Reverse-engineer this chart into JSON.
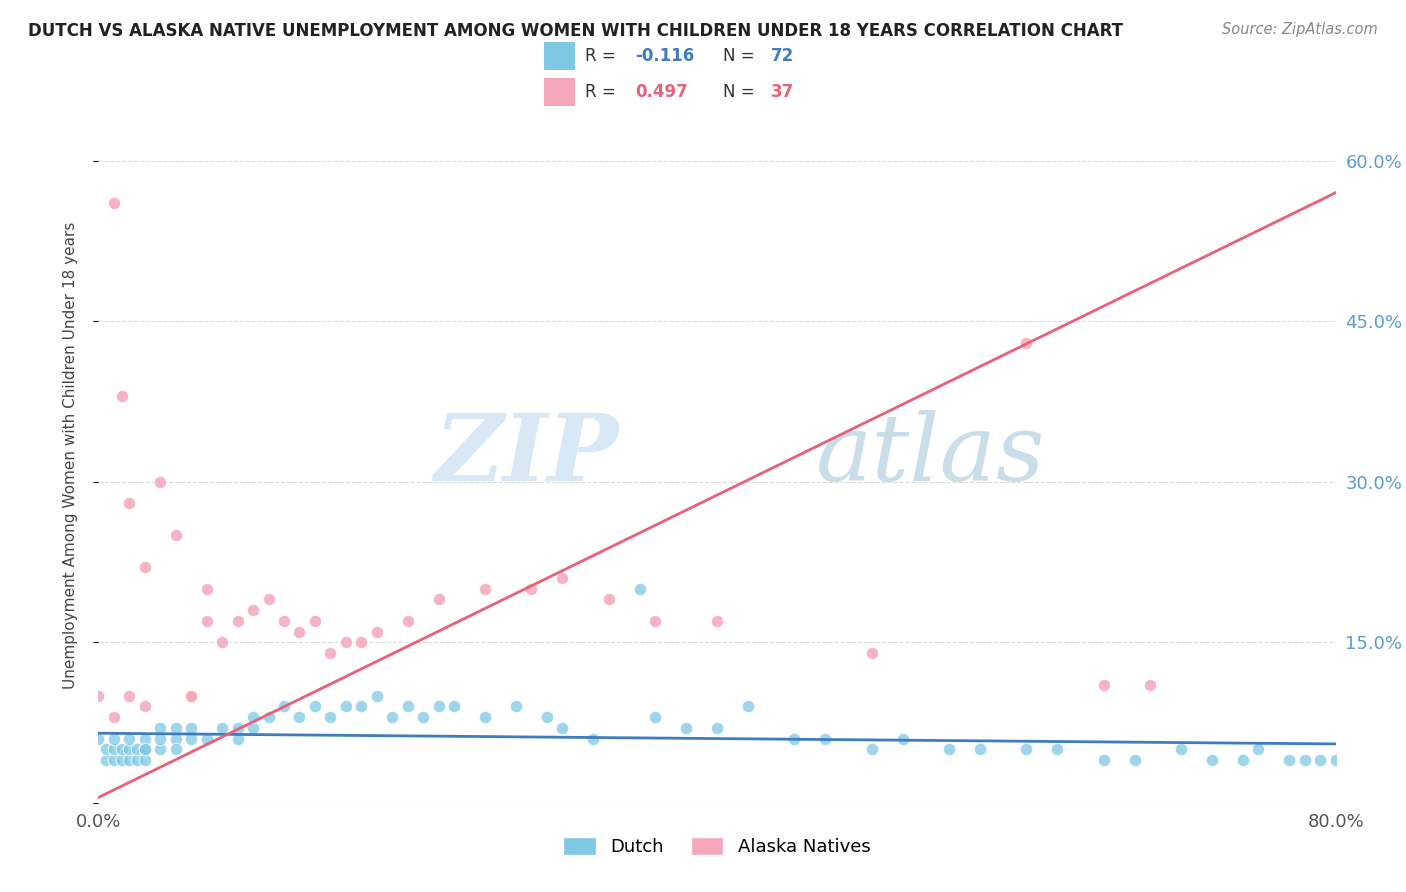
{
  "title": "DUTCH VS ALASKA NATIVE UNEMPLOYMENT AMONG WOMEN WITH CHILDREN UNDER 18 YEARS CORRELATION CHART",
  "source": "Source: ZipAtlas.com",
  "ylabel": "Unemployment Among Women with Children Under 18 years",
  "xlabel": "",
  "xlim": [
    0.0,
    0.8
  ],
  "ylim": [
    0.0,
    0.65
  ],
  "dutch_R": -0.116,
  "dutch_N": 72,
  "alaska_R": 0.497,
  "alaska_N": 37,
  "dutch_color": "#7ec8e3",
  "alaska_color": "#f4a7b9",
  "dutch_line_color": "#3e7bbf",
  "alaska_line_color": "#e8607a",
  "dutch_scatter_x": [
    0.0,
    0.005,
    0.005,
    0.01,
    0.01,
    0.01,
    0.015,
    0.015,
    0.02,
    0.02,
    0.02,
    0.025,
    0.025,
    0.03,
    0.03,
    0.03,
    0.03,
    0.04,
    0.04,
    0.04,
    0.05,
    0.05,
    0.05,
    0.06,
    0.06,
    0.07,
    0.08,
    0.09,
    0.09,
    0.1,
    0.1,
    0.11,
    0.12,
    0.13,
    0.14,
    0.15,
    0.16,
    0.17,
    0.18,
    0.19,
    0.2,
    0.21,
    0.22,
    0.23,
    0.25,
    0.27,
    0.29,
    0.3,
    0.32,
    0.35,
    0.36,
    0.38,
    0.4,
    0.42,
    0.45,
    0.47,
    0.5,
    0.52,
    0.55,
    0.57,
    0.6,
    0.62,
    0.65,
    0.67,
    0.7,
    0.72,
    0.74,
    0.75,
    0.77,
    0.78,
    0.79,
    0.8
  ],
  "dutch_scatter_y": [
    0.06,
    0.04,
    0.05,
    0.04,
    0.05,
    0.06,
    0.04,
    0.05,
    0.04,
    0.05,
    0.06,
    0.04,
    0.05,
    0.04,
    0.05,
    0.06,
    0.05,
    0.05,
    0.06,
    0.07,
    0.06,
    0.07,
    0.05,
    0.06,
    0.07,
    0.06,
    0.07,
    0.07,
    0.06,
    0.07,
    0.08,
    0.08,
    0.09,
    0.08,
    0.09,
    0.08,
    0.09,
    0.09,
    0.1,
    0.08,
    0.09,
    0.08,
    0.09,
    0.09,
    0.08,
    0.09,
    0.08,
    0.07,
    0.06,
    0.2,
    0.08,
    0.07,
    0.07,
    0.09,
    0.06,
    0.06,
    0.05,
    0.06,
    0.05,
    0.05,
    0.05,
    0.05,
    0.04,
    0.04,
    0.05,
    0.04,
    0.04,
    0.05,
    0.04,
    0.04,
    0.04,
    0.04
  ],
  "alaska_scatter_x": [
    0.0,
    0.01,
    0.01,
    0.015,
    0.02,
    0.02,
    0.03,
    0.03,
    0.04,
    0.05,
    0.06,
    0.06,
    0.07,
    0.07,
    0.08,
    0.09,
    0.1,
    0.11,
    0.12,
    0.13,
    0.14,
    0.15,
    0.16,
    0.17,
    0.18,
    0.2,
    0.22,
    0.25,
    0.28,
    0.3,
    0.33,
    0.36,
    0.4,
    0.5,
    0.6,
    0.65,
    0.68
  ],
  "alaska_scatter_y": [
    0.1,
    0.08,
    0.56,
    0.38,
    0.28,
    0.1,
    0.22,
    0.09,
    0.3,
    0.25,
    0.1,
    0.1,
    0.2,
    0.17,
    0.15,
    0.17,
    0.18,
    0.19,
    0.17,
    0.16,
    0.17,
    0.14,
    0.15,
    0.15,
    0.16,
    0.17,
    0.19,
    0.2,
    0.2,
    0.21,
    0.19,
    0.17,
    0.17,
    0.14,
    0.43,
    0.11,
    0.11
  ],
  "watermark_zip": "ZIP",
  "watermark_atlas": "atlas",
  "background_color": "#ffffff",
  "grid_color": "#cccccc",
  "title_color": "#222222",
  "source_color": "#888888",
  "ylabel_color": "#444444",
  "tick_color": "#555555",
  "right_tick_color": "#5b9bd5"
}
